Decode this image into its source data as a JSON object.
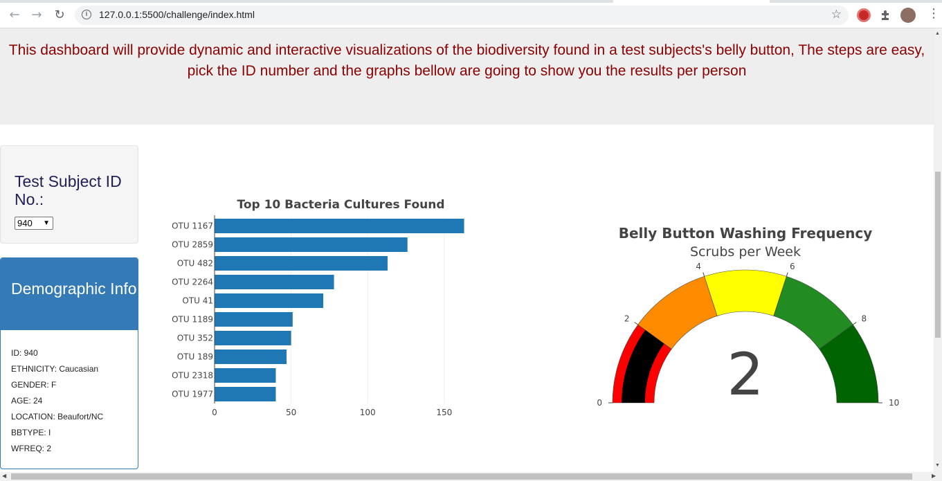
{
  "browser": {
    "url": "127.0.0.1:5500/challenge/index.html"
  },
  "header": {
    "intro": "This dashboard will provide dynamic and interactive visualizations of the biodiversity found in a test subjects's belly button, The steps are easy, pick the ID number and the graphs bellow are going to show you the results per person"
  },
  "selector": {
    "title": "Test Subject ID No.:",
    "selected": "940"
  },
  "demographics": {
    "title": "Demographic Info",
    "rows": [
      "ID: 940",
      "ETHNICITY: Caucasian",
      "GENDER: F",
      "AGE: 24",
      "LOCATION: Beaufort/NC",
      "BBTYPE: I",
      "WFREQ: 2"
    ]
  },
  "chart_data": [
    {
      "type": "bar",
      "orientation": "horizontal",
      "title": "Top 10 Bacteria Cultures Found",
      "categories": [
        "OTU 1167",
        "OTU 2859",
        "OTU 482",
        "OTU 2264",
        "OTU 41",
        "OTU 1189",
        "OTU 352",
        "OTU 189",
        "OTU 2318",
        "OTU 1977"
      ],
      "values": [
        163,
        126,
        113,
        78,
        71,
        51,
        50,
        47,
        40,
        40
      ],
      "xticks": [
        0,
        50,
        100,
        150
      ],
      "xlim": [
        0,
        165
      ],
      "grid": true,
      "color": "#1f77b4"
    },
    {
      "type": "gauge",
      "title": "Belly Button Washing Frequency",
      "subtitle": "Scrubs per Week",
      "value": 2,
      "range": [
        0,
        10
      ],
      "ticks": [
        0,
        2,
        4,
        6,
        8,
        10
      ],
      "steps": [
        {
          "range": [
            0,
            2
          ],
          "color": "#ff0000"
        },
        {
          "range": [
            2,
            4
          ],
          "color": "#ff8c00"
        },
        {
          "range": [
            4,
            6
          ],
          "color": "#ffff00"
        },
        {
          "range": [
            6,
            8
          ],
          "color": "#228b22"
        },
        {
          "range": [
            8,
            10
          ],
          "color": "#006400"
        }
      ],
      "bar_color": "#000000"
    }
  ]
}
